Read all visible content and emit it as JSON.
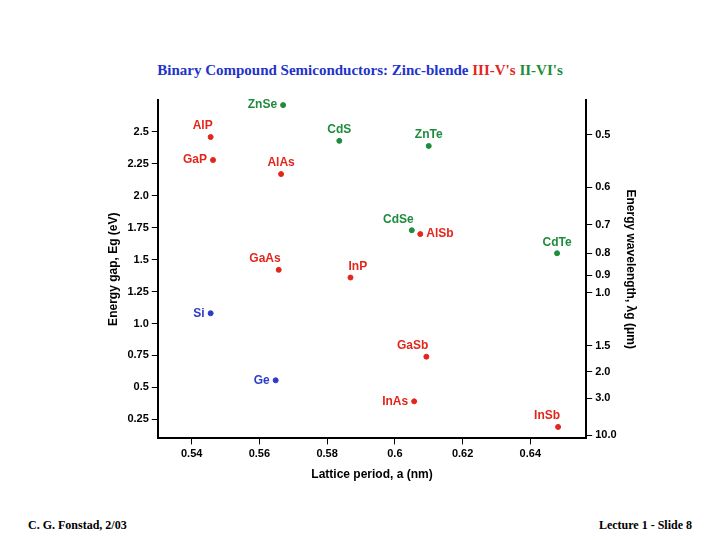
{
  "chart_data": {
    "type": "scatter",
    "title": "Binary Compound Semiconductors: Zinc-blende III-V's II-VI's",
    "x_label": "Lattice period, a (nm)",
    "y_label": "Energy gap, Eg (eV)",
    "y2_label": "Energy wavelength, λg (μm)",
    "annotations": [
      "C. G. Fonstad, 2/03",
      "Lecture 1 - Slide 8"
    ],
    "xlim": [
      0.53,
      0.6565
    ],
    "xticks": [
      0.54,
      0.56,
      0.58,
      0.6,
      0.62,
      0.64
    ],
    "ylim": [
      0.1,
      2.75
    ],
    "yticks": [
      0.25,
      0.5,
      0.75,
      {
        "value": 1,
        "label": "1.0"
      },
      1.25,
      1.5,
      1.75,
      {
        "value": 2,
        "label": "2.0"
      },
      2.25,
      2.5
    ],
    "y2lim": [
      12.4,
      0.4509
    ],
    "y2ticks": [
      0.5,
      0.6,
      0.7,
      0.8,
      0.9,
      {
        "value": 1,
        "label": "1.0"
      },
      1.5,
      {
        "value": 2,
        "label": "2.0"
      },
      {
        "value": 3,
        "label": "3.0"
      },
      {
        "value": 10,
        "label": "10.0"
      }
    ],
    "grid": false,
    "marker": "circle",
    "series": [
      {
        "name": "III-V's",
        "color": "#e3261c",
        "labels": [
          "AlP",
          "GaP",
          "AlAs",
          "GaAs",
          "InP",
          "AlSb",
          "GaSb",
          "InAs",
          "InSb"
        ],
        "x": [
          0.5456,
          0.5463,
          0.5664,
          0.5657,
          0.5869,
          0.6075,
          0.6093,
          0.6057,
          0.6482
        ],
        "values": [
          2.46,
          2.28,
          2.17,
          1.42,
          1.36,
          1.7,
          0.74,
          0.39,
          0.19
        ]
      },
      {
        "name": "II-VI's",
        "color": "#1e8c3c",
        "labels": [
          "ZnSe",
          "CdS",
          "ZnTe",
          "CdSe",
          "CdTe"
        ],
        "x": [
          0.567,
          0.5836,
          0.61,
          0.605,
          0.6479
        ],
        "values": [
          2.71,
          2.43,
          2.39,
          1.73,
          1.55
        ]
      },
      {
        "color": "#2a3cc8",
        "labels": [
          "Si",
          "Ge"
        ],
        "x": [
          0.5456,
          0.5648
        ],
        "values": [
          1.08,
          0.555
        ]
      }
    ]
  }
}
